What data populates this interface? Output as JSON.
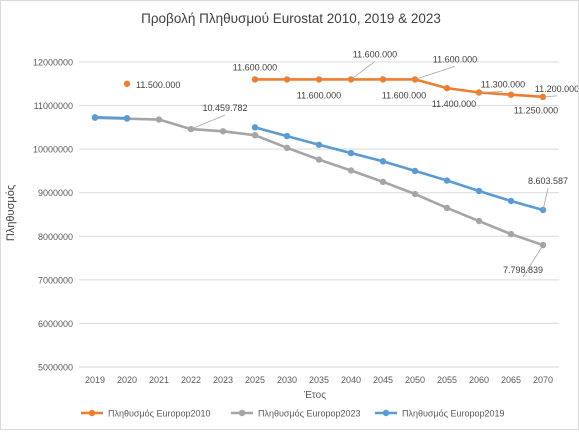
{
  "chart_data": {
    "type": "line",
    "title": "Προβολή Πληθυσμού Eurostat 2010, 2019 & 2023",
    "xlabel": "Έτος",
    "ylabel": "Πληθυσμός",
    "categories": [
      "2019",
      "2020",
      "2021",
      "2022",
      "2023",
      "2025",
      "2030",
      "2035",
      "2040",
      "2045",
      "2050",
      "2055",
      "2060",
      "2065",
      "2070"
    ],
    "ylim": [
      5000000,
      12000000
    ],
    "yticks": [
      5000000,
      6000000,
      7000000,
      8000000,
      9000000,
      10000000,
      11000000,
      12000000
    ],
    "ytick_labels": [
      "5000000",
      "6000000",
      "7000000",
      "8000000",
      "9000000",
      "10000000",
      "11000000",
      "12000000"
    ],
    "grid": "horizontal",
    "legend_position": "bottom",
    "series": [
      {
        "name": "Πληθυσμός Europop2010",
        "color": "#ED7D31",
        "values": [
          null,
          11500000,
          null,
          null,
          null,
          11600000,
          11600000,
          11600000,
          11600000,
          11600000,
          11600000,
          11400000,
          11300000,
          11250000,
          11200000
        ]
      },
      {
        "name": "Πληθυσμός Europop2023",
        "color": "#A5A5A5",
        "values": [
          10720000,
          10700000,
          10680000,
          10459782,
          10410000,
          10320000,
          10030000,
          9760000,
          9510000,
          9250000,
          8970000,
          8650000,
          8350000,
          8050000,
          7798839
        ]
      },
      {
        "name": "Πληθυσμός Europop2019",
        "color": "#5B9BD5",
        "values": [
          10730000,
          10710000,
          null,
          null,
          null,
          10500000,
          10300000,
          10100000,
          9910000,
          9720000,
          9500000,
          9280000,
          9040000,
          8810000,
          8603587
        ]
      }
    ],
    "annotations": [
      {
        "series": 0,
        "index": 1,
        "text": "11.500.000"
      },
      {
        "series": 0,
        "index": 5,
        "text": "11.600.000"
      },
      {
        "series": 0,
        "index": 7,
        "text": "11.600.000"
      },
      {
        "series": 0,
        "index": 8,
        "text": "11.600.000"
      },
      {
        "series": 0,
        "index": 9,
        "text": "11.600.000"
      },
      {
        "series": 0,
        "index": 10,
        "text": "11.600.000"
      },
      {
        "series": 0,
        "index": 11,
        "text": "11.400.000"
      },
      {
        "series": 0,
        "index": 12,
        "text": "11.300.000"
      },
      {
        "series": 0,
        "index": 13,
        "text": "11.250.000"
      },
      {
        "series": 0,
        "index": 14,
        "text": "11.200.000"
      },
      {
        "series": 1,
        "index": 3,
        "text": "10.459.782"
      },
      {
        "series": 1,
        "index": 14,
        "text": "7.798.839"
      },
      {
        "series": 2,
        "index": 14,
        "text": "8.603.587"
      }
    ]
  }
}
